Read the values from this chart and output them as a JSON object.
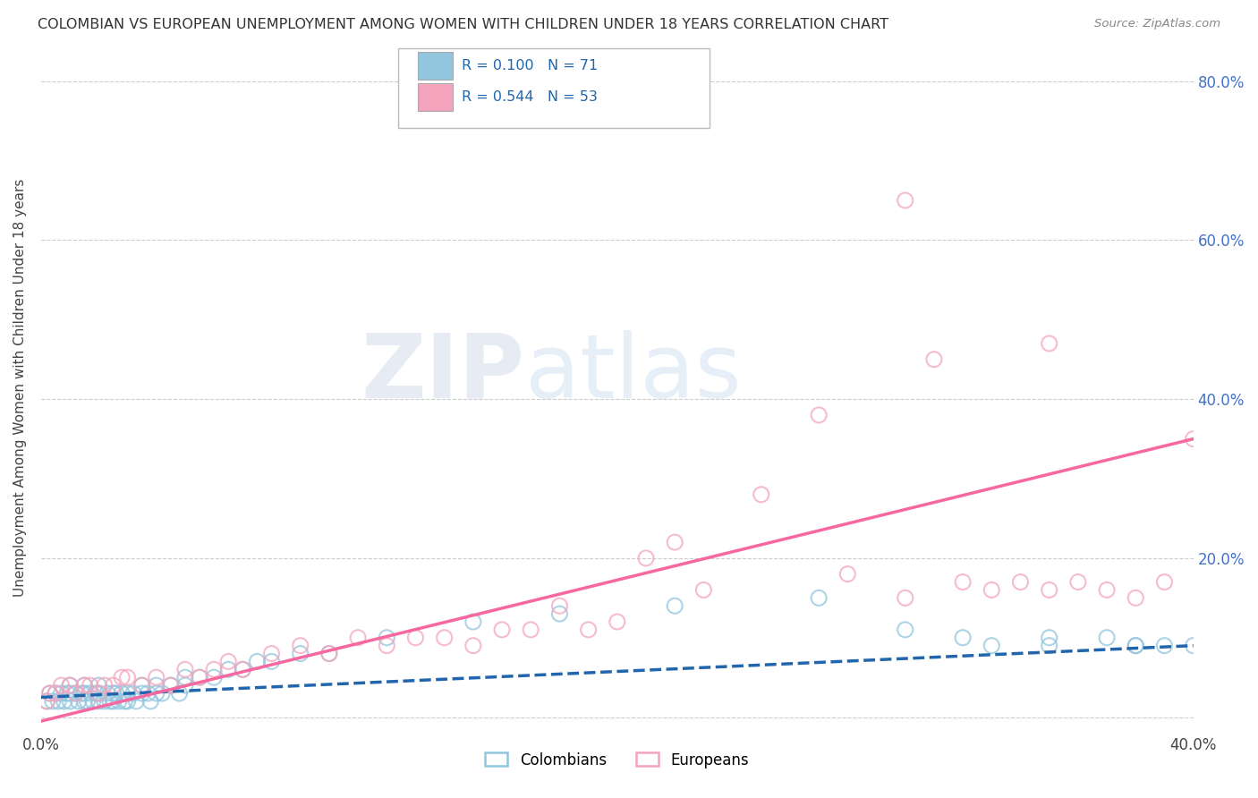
{
  "title": "COLOMBIAN VS EUROPEAN UNEMPLOYMENT AMONG WOMEN WITH CHILDREN UNDER 18 YEARS CORRELATION CHART",
  "source": "Source: ZipAtlas.com",
  "ylabel": "Unemployment Among Women with Children Under 18 years",
  "xlim": [
    0.0,
    0.4
  ],
  "ylim": [
    -0.02,
    0.85
  ],
  "ytick_positions": [
    0.0,
    0.2,
    0.4,
    0.6,
    0.8
  ],
  "ytick_labels_right": [
    "",
    "20.0%",
    "40.0%",
    "60.0%",
    "80.0%"
  ],
  "colombian_color": "#92c5de",
  "european_color": "#f4a4bc",
  "colombian_line_color": "#2166ac",
  "european_line_color": "#f768a1",
  "grid_color": "#cccccc",
  "background_color": "#ffffff",
  "watermark_zip": "ZIP",
  "watermark_atlas": "atlas",
  "legend_R_col": "0.100",
  "legend_N_col": "71",
  "legend_R_eur": "0.544",
  "legend_N_eur": "53",
  "col_scatter_x": [
    0.002,
    0.003,
    0.004,
    0.005,
    0.006,
    0.007,
    0.008,
    0.009,
    0.01,
    0.01,
    0.01,
    0.012,
    0.013,
    0.014,
    0.015,
    0.015,
    0.015,
    0.016,
    0.017,
    0.018,
    0.019,
    0.02,
    0.02,
    0.02,
    0.022,
    0.023,
    0.024,
    0.025,
    0.025,
    0.026,
    0.027,
    0.028,
    0.029,
    0.03,
    0.03,
    0.032,
    0.033,
    0.035,
    0.035,
    0.037,
    0.038,
    0.04,
    0.04,
    0.042,
    0.045,
    0.048,
    0.05,
    0.05,
    0.055,
    0.06,
    0.065,
    0.07,
    0.075,
    0.08,
    0.09,
    0.1,
    0.12,
    0.15,
    0.18,
    0.22,
    0.27,
    0.3,
    0.32,
    0.35,
    0.37,
    0.38,
    0.39,
    0.4,
    0.38,
    0.35,
    0.33
  ],
  "col_scatter_y": [
    0.02,
    0.03,
    0.02,
    0.03,
    0.02,
    0.03,
    0.02,
    0.03,
    0.03,
    0.04,
    0.02,
    0.03,
    0.02,
    0.03,
    0.02,
    0.03,
    0.04,
    0.02,
    0.03,
    0.02,
    0.03,
    0.02,
    0.03,
    0.04,
    0.02,
    0.03,
    0.02,
    0.02,
    0.03,
    0.03,
    0.02,
    0.03,
    0.02,
    0.02,
    0.03,
    0.03,
    0.02,
    0.03,
    0.04,
    0.03,
    0.02,
    0.03,
    0.04,
    0.03,
    0.04,
    0.03,
    0.04,
    0.05,
    0.05,
    0.05,
    0.06,
    0.06,
    0.07,
    0.07,
    0.08,
    0.08,
    0.1,
    0.12,
    0.13,
    0.14,
    0.15,
    0.11,
    0.1,
    0.1,
    0.1,
    0.09,
    0.09,
    0.09,
    0.09,
    0.09,
    0.09
  ],
  "eur_scatter_x": [
    0.002,
    0.003,
    0.005,
    0.007,
    0.01,
    0.012,
    0.015,
    0.017,
    0.02,
    0.022,
    0.025,
    0.028,
    0.03,
    0.035,
    0.04,
    0.045,
    0.05,
    0.055,
    0.06,
    0.065,
    0.07,
    0.08,
    0.09,
    0.1,
    0.11,
    0.12,
    0.13,
    0.14,
    0.15,
    0.16,
    0.17,
    0.18,
    0.19,
    0.2,
    0.21,
    0.22,
    0.23,
    0.25,
    0.27,
    0.28,
    0.3,
    0.31,
    0.32,
    0.33,
    0.34,
    0.35,
    0.36,
    0.37,
    0.38,
    0.39,
    0.4,
    0.3,
    0.35
  ],
  "eur_scatter_y": [
    0.02,
    0.03,
    0.03,
    0.04,
    0.04,
    0.03,
    0.04,
    0.04,
    0.03,
    0.04,
    0.04,
    0.05,
    0.05,
    0.04,
    0.05,
    0.04,
    0.06,
    0.05,
    0.06,
    0.07,
    0.06,
    0.08,
    0.09,
    0.08,
    0.1,
    0.09,
    0.1,
    0.1,
    0.09,
    0.11,
    0.11,
    0.14,
    0.11,
    0.12,
    0.2,
    0.22,
    0.16,
    0.28,
    0.38,
    0.18,
    0.15,
    0.45,
    0.17,
    0.16,
    0.17,
    0.16,
    0.17,
    0.16,
    0.15,
    0.17,
    0.35,
    0.65,
    0.47
  ]
}
